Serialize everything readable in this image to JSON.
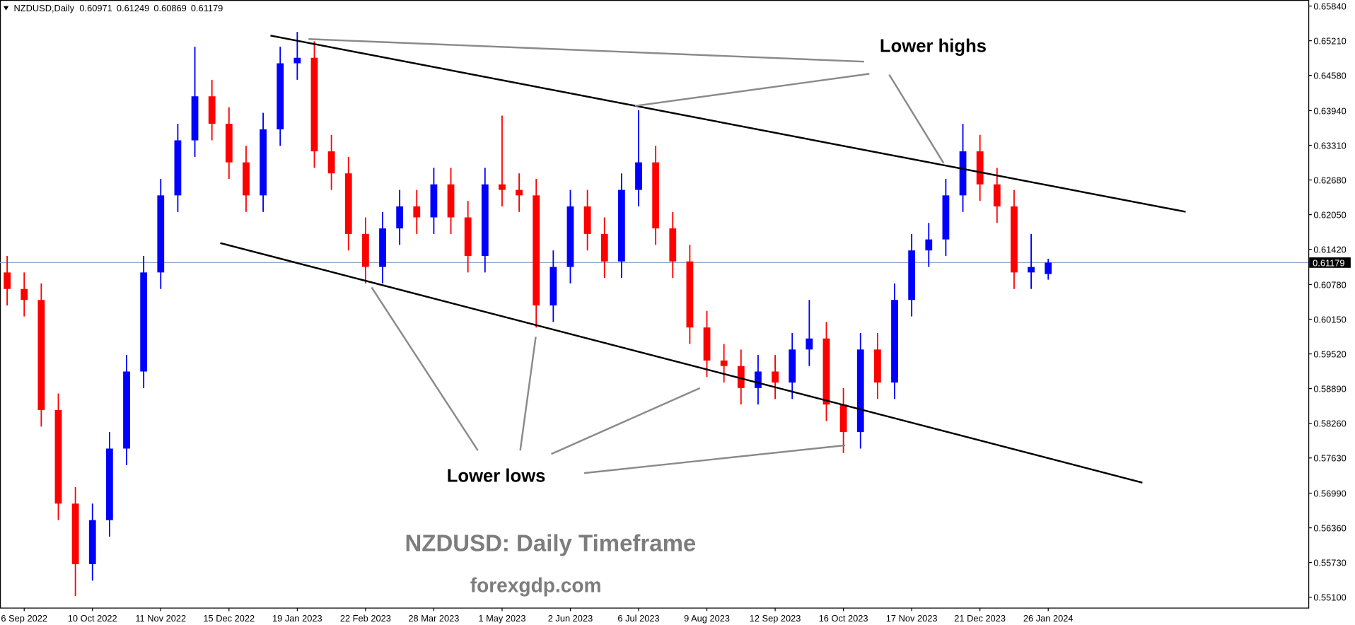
{
  "chart_data": {
    "type": "candlestick",
    "symbol": "NZDUSD,Daily",
    "up_color": "#0000ff",
    "down_color": "#ff0000",
    "price_line_color": "#8fa8c8",
    "categories": [
      null,
      "6 Sep 2022",
      null,
      null,
      null,
      "10 Oct 2022",
      null,
      null,
      null,
      "11 Nov 2022",
      null,
      null,
      null,
      "15 Dec 2022",
      null,
      null,
      null,
      "19 Jan 2023",
      null,
      null,
      null,
      "22 Feb 2023",
      null,
      null,
      null,
      "28 Mar 2023",
      null,
      null,
      null,
      "1 May 2023",
      null,
      null,
      null,
      "2 Jun 2023",
      null,
      null,
      null,
      "6 Jul 2023",
      null,
      null,
      null,
      "9 Aug 2023",
      null,
      null,
      null,
      "12 Sep 2023",
      null,
      null,
      null,
      "16 Oct 2023",
      null,
      null,
      null,
      "17 Nov 2023",
      null,
      null,
      null,
      "21 Dec 2023",
      null,
      null,
      null,
      "26 Jan 2024"
    ],
    "open": [
      0.61,
      0.607,
      0.605,
      0.585,
      0.568,
      0.557,
      0.565,
      0.578,
      0.592,
      0.61,
      0.624,
      0.634,
      0.642,
      0.637,
      0.63,
      0.624,
      0.636,
      0.648,
      0.649,
      0.632,
      0.628,
      0.617,
      0.611,
      0.618,
      0.622,
      0.62,
      0.626,
      0.62,
      0.613,
      0.626,
      0.625,
      0.624,
      0.604,
      0.611,
      0.622,
      0.617,
      0.612,
      0.625,
      0.63,
      0.618,
      0.612,
      0.6,
      0.594,
      0.593,
      0.589,
      0.592,
      0.59,
      0.596,
      0.598,
      0.586,
      0.581,
      0.596,
      0.59,
      0.605,
      0.614,
      0.616,
      0.624,
      0.632,
      0.626,
      0.622,
      0.61,
      0.60971
    ],
    "high": [
      0.613,
      0.61,
      0.608,
      0.588,
      0.571,
      0.568,
      0.581,
      0.595,
      0.613,
      0.627,
      0.637,
      0.651,
      0.645,
      0.64,
      0.633,
      0.639,
      0.651,
      0.6537,
      0.652,
      0.635,
      0.631,
      0.62,
      0.621,
      0.625,
      0.625,
      0.629,
      0.629,
      0.623,
      0.629,
      0.6385,
      0.628,
      0.627,
      0.614,
      0.625,
      0.625,
      0.62,
      0.628,
      0.6395,
      0.633,
      0.621,
      0.615,
      0.603,
      0.597,
      0.596,
      0.595,
      0.595,
      0.599,
      0.605,
      0.601,
      0.589,
      0.599,
      0.599,
      0.608,
      0.617,
      0.619,
      0.627,
      0.637,
      0.635,
      0.629,
      0.625,
      0.617,
      0.61249
    ],
    "low": [
      0.604,
      0.602,
      0.582,
      0.565,
      0.5512,
      0.554,
      0.562,
      0.575,
      0.589,
      0.607,
      0.621,
      0.631,
      0.634,
      0.627,
      0.621,
      0.621,
      0.633,
      0.645,
      0.629,
      0.625,
      0.614,
      0.608,
      0.608,
      0.615,
      0.617,
      0.617,
      0.617,
      0.61,
      0.61,
      0.622,
      0.621,
      0.6,
      0.601,
      0.608,
      0.614,
      0.609,
      0.609,
      0.622,
      0.615,
      0.609,
      0.597,
      0.591,
      0.59,
      0.586,
      0.586,
      0.587,
      0.587,
      0.593,
      0.583,
      0.5772,
      0.578,
      0.587,
      0.587,
      0.602,
      0.611,
      0.613,
      0.621,
      0.623,
      0.619,
      0.607,
      0.607,
      0.60869
    ],
    "close": [
      0.607,
      0.605,
      0.585,
      0.568,
      0.557,
      0.565,
      0.578,
      0.592,
      0.61,
      0.624,
      0.634,
      0.642,
      0.637,
      0.63,
      0.624,
      0.636,
      0.648,
      0.649,
      0.632,
      0.628,
      0.617,
      0.611,
      0.618,
      0.622,
      0.62,
      0.626,
      0.62,
      0.613,
      0.626,
      0.625,
      0.624,
      0.604,
      0.611,
      0.622,
      0.617,
      0.612,
      0.625,
      0.63,
      0.618,
      0.612,
      0.6,
      0.594,
      0.593,
      0.589,
      0.592,
      0.59,
      0.596,
      0.598,
      0.586,
      0.581,
      0.596,
      0.59,
      0.605,
      0.614,
      0.616,
      0.624,
      0.632,
      0.626,
      0.622,
      0.61,
      0.611,
      0.61179
    ],
    "ylim": [
      0.5491,
      0.6595
    ],
    "yticks": [
      {
        "value": 0.6584,
        "label": "0.65840"
      },
      {
        "value": 0.6521,
        "label": "0.65210"
      },
      {
        "value": 0.6458,
        "label": "0.64580"
      },
      {
        "value": 0.6394,
        "label": "0.63940"
      },
      {
        "value": 0.6331,
        "label": "0.63310"
      },
      {
        "value": 0.6268,
        "label": "0.62680"
      },
      {
        "value": 0.6205,
        "label": "0.62050"
      },
      {
        "value": 0.6142,
        "label": "0.61420"
      },
      {
        "value": 0.6078,
        "label": "0.60780"
      },
      {
        "value": 0.6015,
        "label": "0.60150"
      },
      {
        "value": 0.5952,
        "label": "0.59520"
      },
      {
        "value": 0.5889,
        "label": "0.58890"
      },
      {
        "value": 0.5826,
        "label": "0.58260"
      },
      {
        "value": 0.5763,
        "label": "0.57630"
      },
      {
        "value": 0.5699,
        "label": "0.56990"
      },
      {
        "value": 0.5636,
        "label": "0.56360"
      },
      {
        "value": 0.5573,
        "label": "0.55730"
      },
      {
        "value": 0.551,
        "label": "0.55100"
      }
    ],
    "annotations": {
      "highs": "Lower highs",
      "lows": "Lower lows",
      "title": "NZDUSD: Daily Timeframe",
      "site": "forexgdp.com"
    }
  }
}
